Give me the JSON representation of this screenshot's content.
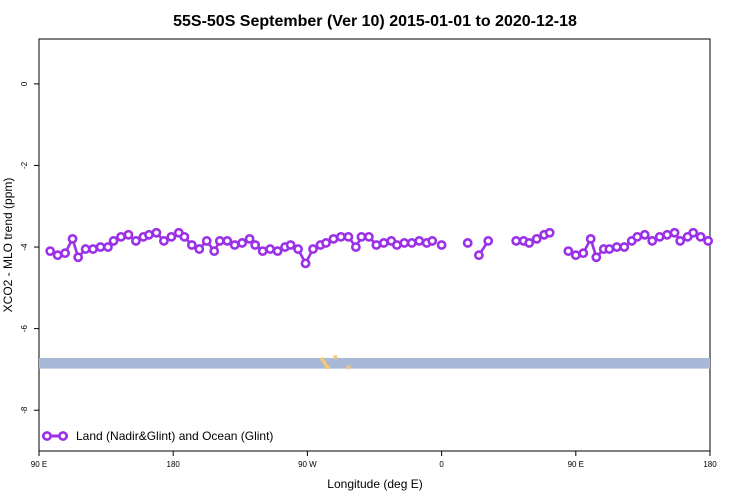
{
  "chart_data": {
    "type": "line",
    "title": "55S-50S September (Ver 10)   2015-01-01 to 2020-12-18",
    "xlabel": "Longitude (deg E)",
    "ylabel": "XCO2 - MLO trend (ppm)",
    "xlim": [
      90,
      450
    ],
    "ylim": [
      -9,
      1.1
    ],
    "x_ticks": [
      {
        "value": 90,
        "label": "90 E"
      },
      {
        "value": 162,
        "label": "180"
      },
      {
        "value": 234,
        "label": "90 W"
      },
      {
        "value": 306,
        "label": "0"
      },
      {
        "value": 378,
        "label": "90 E"
      },
      {
        "value": 450,
        "label": "180"
      }
    ],
    "y_ticks": [
      {
        "value": 0,
        "label": "0"
      },
      {
        "value": -2,
        "label": "-2"
      },
      {
        "value": -4,
        "label": "-4"
      },
      {
        "value": -6,
        "label": "-6"
      },
      {
        "value": -8,
        "label": "-8"
      }
    ],
    "grid": false,
    "legend": {
      "position": "bottom-left"
    },
    "series": [
      {
        "name": "Land (Nadir&Glint) and Ocean (Glint)",
        "color": "#9b30e8",
        "segments": [
          {
            "x": [
              96,
              100,
              104,
              108,
              111,
              115,
              119,
              123,
              127,
              130,
              134,
              138,
              142,
              146,
              149,
              153,
              157,
              161,
              165,
              168,
              172,
              176,
              180,
              184,
              187,
              191,
              195,
              199,
              203,
              206,
              210,
              214,
              218,
              222,
              225,
              229,
              233,
              237,
              241,
              244,
              248,
              252,
              256,
              260,
              263,
              267,
              271,
              275,
              279,
              282,
              286,
              290,
              294,
              298,
              301
            ],
            "y": [
              -4.1,
              -4.2,
              -4.15,
              -3.8,
              -4.25,
              -4.05,
              -4.05,
              -4.0,
              -4.0,
              -3.85,
              -3.75,
              -3.7,
              -3.85,
              -3.75,
              -3.7,
              -3.65,
              -3.85,
              -3.75,
              -3.65,
              -3.75,
              -3.95,
              -4.05,
              -3.85,
              -4.1,
              -3.85,
              -3.85,
              -3.95,
              -3.9,
              -3.8,
              -3.95,
              -4.1,
              -4.05,
              -4.1,
              -4.0,
              -3.95,
              -4.05,
              -4.4,
              -4.05,
              -3.95,
              -3.9,
              -3.8,
              -3.75,
              -3.75,
              -4.0,
              -3.75,
              -3.75,
              -3.95,
              -3.9,
              -3.85,
              -3.95,
              -3.9,
              -3.9,
              -3.85,
              -3.9,
              -3.85
            ]
          },
          {
            "x": [
              306
            ],
            "y": [
              -3.95
            ]
          },
          {
            "x": [
              320
            ],
            "y": [
              -3.9
            ]
          },
          {
            "x": [
              326,
              331
            ],
            "y": [
              -4.2,
              -3.85
            ]
          },
          {
            "x": [
              346,
              350,
              353,
              357,
              361,
              364
            ],
            "y": [
              -3.85,
              -3.85,
              -3.9,
              -3.8,
              -3.7,
              -3.65
            ]
          },
          {
            "x": [
              374,
              378,
              382,
              386,
              389,
              393,
              396,
              400,
              404,
              408,
              411,
              415,
              419,
              423,
              427,
              431,
              434,
              438,
              441,
              445,
              449
            ],
            "y": [
              -4.1,
              -4.2,
              -4.15,
              -3.8,
              -4.25,
              -4.05,
              -4.05,
              -4.0,
              -4.0,
              -3.85,
              -3.75,
              -3.7,
              -3.85,
              -3.75,
              -3.7,
              -3.65,
              -3.85,
              -3.75,
              -3.65,
              -3.75,
              -3.85
            ]
          }
        ]
      }
    ],
    "bands": [
      {
        "name": "coverage-band",
        "y_min": -6.98,
        "y_max": -6.72,
        "x_min": 90,
        "x_max": 450,
        "color": "#a8b9d8"
      }
    ],
    "land_marks": [
      {
        "x": 242,
        "y": -6.75
      },
      {
        "x": 243,
        "y": -6.82
      },
      {
        "x": 244,
        "y": -6.9
      },
      {
        "x": 245,
        "y": -6.95
      },
      {
        "x": 249,
        "y": -6.7
      },
      {
        "x": 256,
        "y": -6.95
      }
    ],
    "land_color": "#f5c970"
  }
}
